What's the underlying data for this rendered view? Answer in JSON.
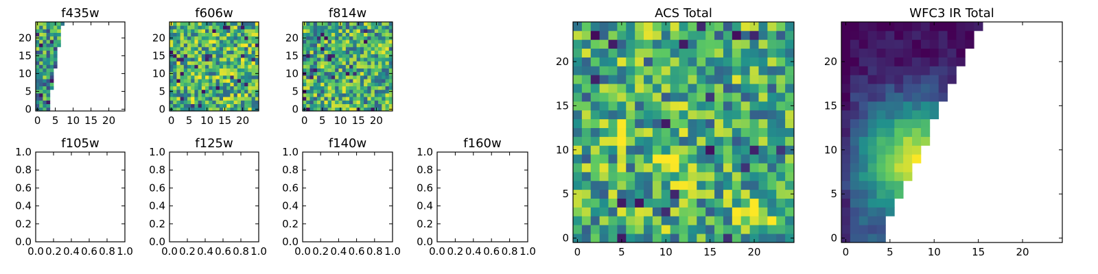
{
  "colormap": [
    "#440154",
    "#3b528b",
    "#21918c",
    "#5ec962",
    "#fde725"
  ],
  "chart_data": [
    {
      "type": "heatmap",
      "title": "f435w",
      "grid": false,
      "xlim": [
        -0.5,
        24.5
      ],
      "ylim": [
        -0.5,
        24.5
      ],
      "xticks": [
        0,
        5,
        10,
        15,
        20
      ],
      "xtick_labels": [
        "0",
        "5",
        "10",
        "15",
        "20"
      ],
      "yticks": [
        0,
        5,
        10,
        15,
        20
      ],
      "ytick_labels": [
        "0",
        "5",
        "10",
        "15",
        "20"
      ],
      "mask": "partial",
      "mask_edge": [
        [
          0,
          3
        ],
        [
          24,
          7
        ]
      ],
      "value_range": [
        0,
        1
      ],
      "seed": 11,
      "level": 0.55
    },
    {
      "type": "heatmap",
      "title": "f606w",
      "grid": false,
      "xlim": [
        -0.5,
        24.5
      ],
      "ylim": [
        -0.5,
        24.5
      ],
      "xticks": [
        0,
        5,
        10,
        15,
        20
      ],
      "xtick_labels": [
        "0",
        "5",
        "10",
        "15",
        "20"
      ],
      "yticks": [
        0,
        5,
        10,
        15,
        20
      ],
      "ytick_labels": [
        "0",
        "5",
        "10",
        "15",
        "20"
      ],
      "mask": "none",
      "value_range": [
        0,
        1
      ],
      "seed": 23,
      "level": 0.66
    },
    {
      "type": "heatmap",
      "title": "f814w",
      "grid": false,
      "xlim": [
        -0.5,
        24.5
      ],
      "ylim": [
        -0.5,
        24.5
      ],
      "xticks": [
        0,
        5,
        10,
        15,
        20
      ],
      "xtick_labels": [
        "0",
        "5",
        "10",
        "15",
        "20"
      ],
      "yticks": [
        0,
        5,
        10,
        15,
        20
      ],
      "ytick_labels": [
        "0",
        "5",
        "10",
        "15",
        "20"
      ],
      "mask": "none",
      "value_range": [
        0,
        1
      ],
      "seed": 37,
      "level": 0.62
    },
    {
      "type": "empty",
      "title": "f105w",
      "xlim": [
        0,
        1
      ],
      "ylim": [
        0,
        1
      ],
      "xticks": [
        0,
        0.2,
        0.4,
        0.6,
        0.8,
        1.0
      ],
      "xtick_labels": [
        "0.0",
        "0.2",
        "0.4",
        "0.6",
        "0.8",
        "1.0"
      ],
      "yticks": [
        0,
        0.2,
        0.4,
        0.6,
        0.8,
        1.0
      ],
      "ytick_labels": [
        "0.0",
        "0.2",
        "0.4",
        "0.6",
        "0.8",
        "1.0"
      ]
    },
    {
      "type": "empty",
      "title": "f125w",
      "xlim": [
        0,
        1
      ],
      "ylim": [
        0,
        1
      ],
      "xticks": [
        0,
        0.2,
        0.4,
        0.6,
        0.8,
        1.0
      ],
      "xtick_labels": [
        "0.0",
        "0.2",
        "0.4",
        "0.6",
        "0.8",
        "1.0"
      ],
      "yticks": [
        0,
        0.2,
        0.4,
        0.6,
        0.8,
        1.0
      ],
      "ytick_labels": [
        "0.0",
        "0.2",
        "0.4",
        "0.6",
        "0.8",
        "1.0"
      ]
    },
    {
      "type": "empty",
      "title": "f140w",
      "xlim": [
        0,
        1
      ],
      "ylim": [
        0,
        1
      ],
      "xticks": [
        0,
        0.2,
        0.4,
        0.6,
        0.8,
        1.0
      ],
      "xtick_labels": [
        "0.0",
        "0.2",
        "0.4",
        "0.6",
        "0.8",
        "1.0"
      ],
      "yticks": [
        0,
        0.2,
        0.4,
        0.6,
        0.8,
        1.0
      ],
      "ytick_labels": [
        "0.0",
        "0.2",
        "0.4",
        "0.6",
        "0.8",
        "1.0"
      ]
    },
    {
      "type": "empty",
      "title": "f160w",
      "xlim": [
        0,
        1
      ],
      "ylim": [
        0,
        1
      ],
      "xticks": [
        0,
        0.2,
        0.4,
        0.6,
        0.8,
        1.0
      ],
      "xtick_labels": [
        "0.0",
        "0.2",
        "0.4",
        "0.6",
        "0.8",
        "1.0"
      ],
      "yticks": [
        0,
        0.2,
        0.4,
        0.6,
        0.8,
        1.0
      ],
      "ytick_labels": [
        "0.0",
        "0.2",
        "0.4",
        "0.6",
        "0.8",
        "1.0"
      ]
    },
    {
      "type": "heatmap",
      "title": "ACS Total",
      "grid": false,
      "xlim": [
        -0.5,
        24.5
      ],
      "ylim": [
        -0.5,
        24.5
      ],
      "xticks": [
        0,
        5,
        10,
        15,
        20
      ],
      "xtick_labels": [
        "0",
        "5",
        "10",
        "15",
        "20"
      ],
      "yticks": [
        0,
        5,
        10,
        15,
        20
      ],
      "ytick_labels": [
        "0",
        "5",
        "10",
        "15",
        "20"
      ],
      "mask": "none",
      "value_range": [
        0,
        1
      ],
      "seed": 53,
      "level": 0.62,
      "bright_spots": [
        [
          10,
          8,
          0.28
        ],
        [
          20,
          3,
          0.3
        ],
        [
          4,
          12,
          0.15
        ]
      ]
    },
    {
      "type": "heatmap",
      "title": "WFC3 IR Total",
      "grid": false,
      "xlim": [
        -0.5,
        24.5
      ],
      "ylim": [
        -0.5,
        24.5
      ],
      "xticks": [
        0,
        5,
        10,
        15,
        20
      ],
      "xtick_labels": [
        "0",
        "5",
        "10",
        "15",
        "20"
      ],
      "yticks": [
        0,
        5,
        10,
        15,
        20
      ],
      "ytick_labels": [
        "0",
        "5",
        "10",
        "15",
        "20"
      ],
      "mask": "partial",
      "mask_edge": [
        [
          0,
          4
        ],
        [
          24,
          15
        ]
      ],
      "value_range": [
        0,
        1
      ],
      "seed": 71,
      "level": 0.4,
      "gradient": "peak_low_right",
      "peak": [
        8,
        9
      ]
    }
  ]
}
